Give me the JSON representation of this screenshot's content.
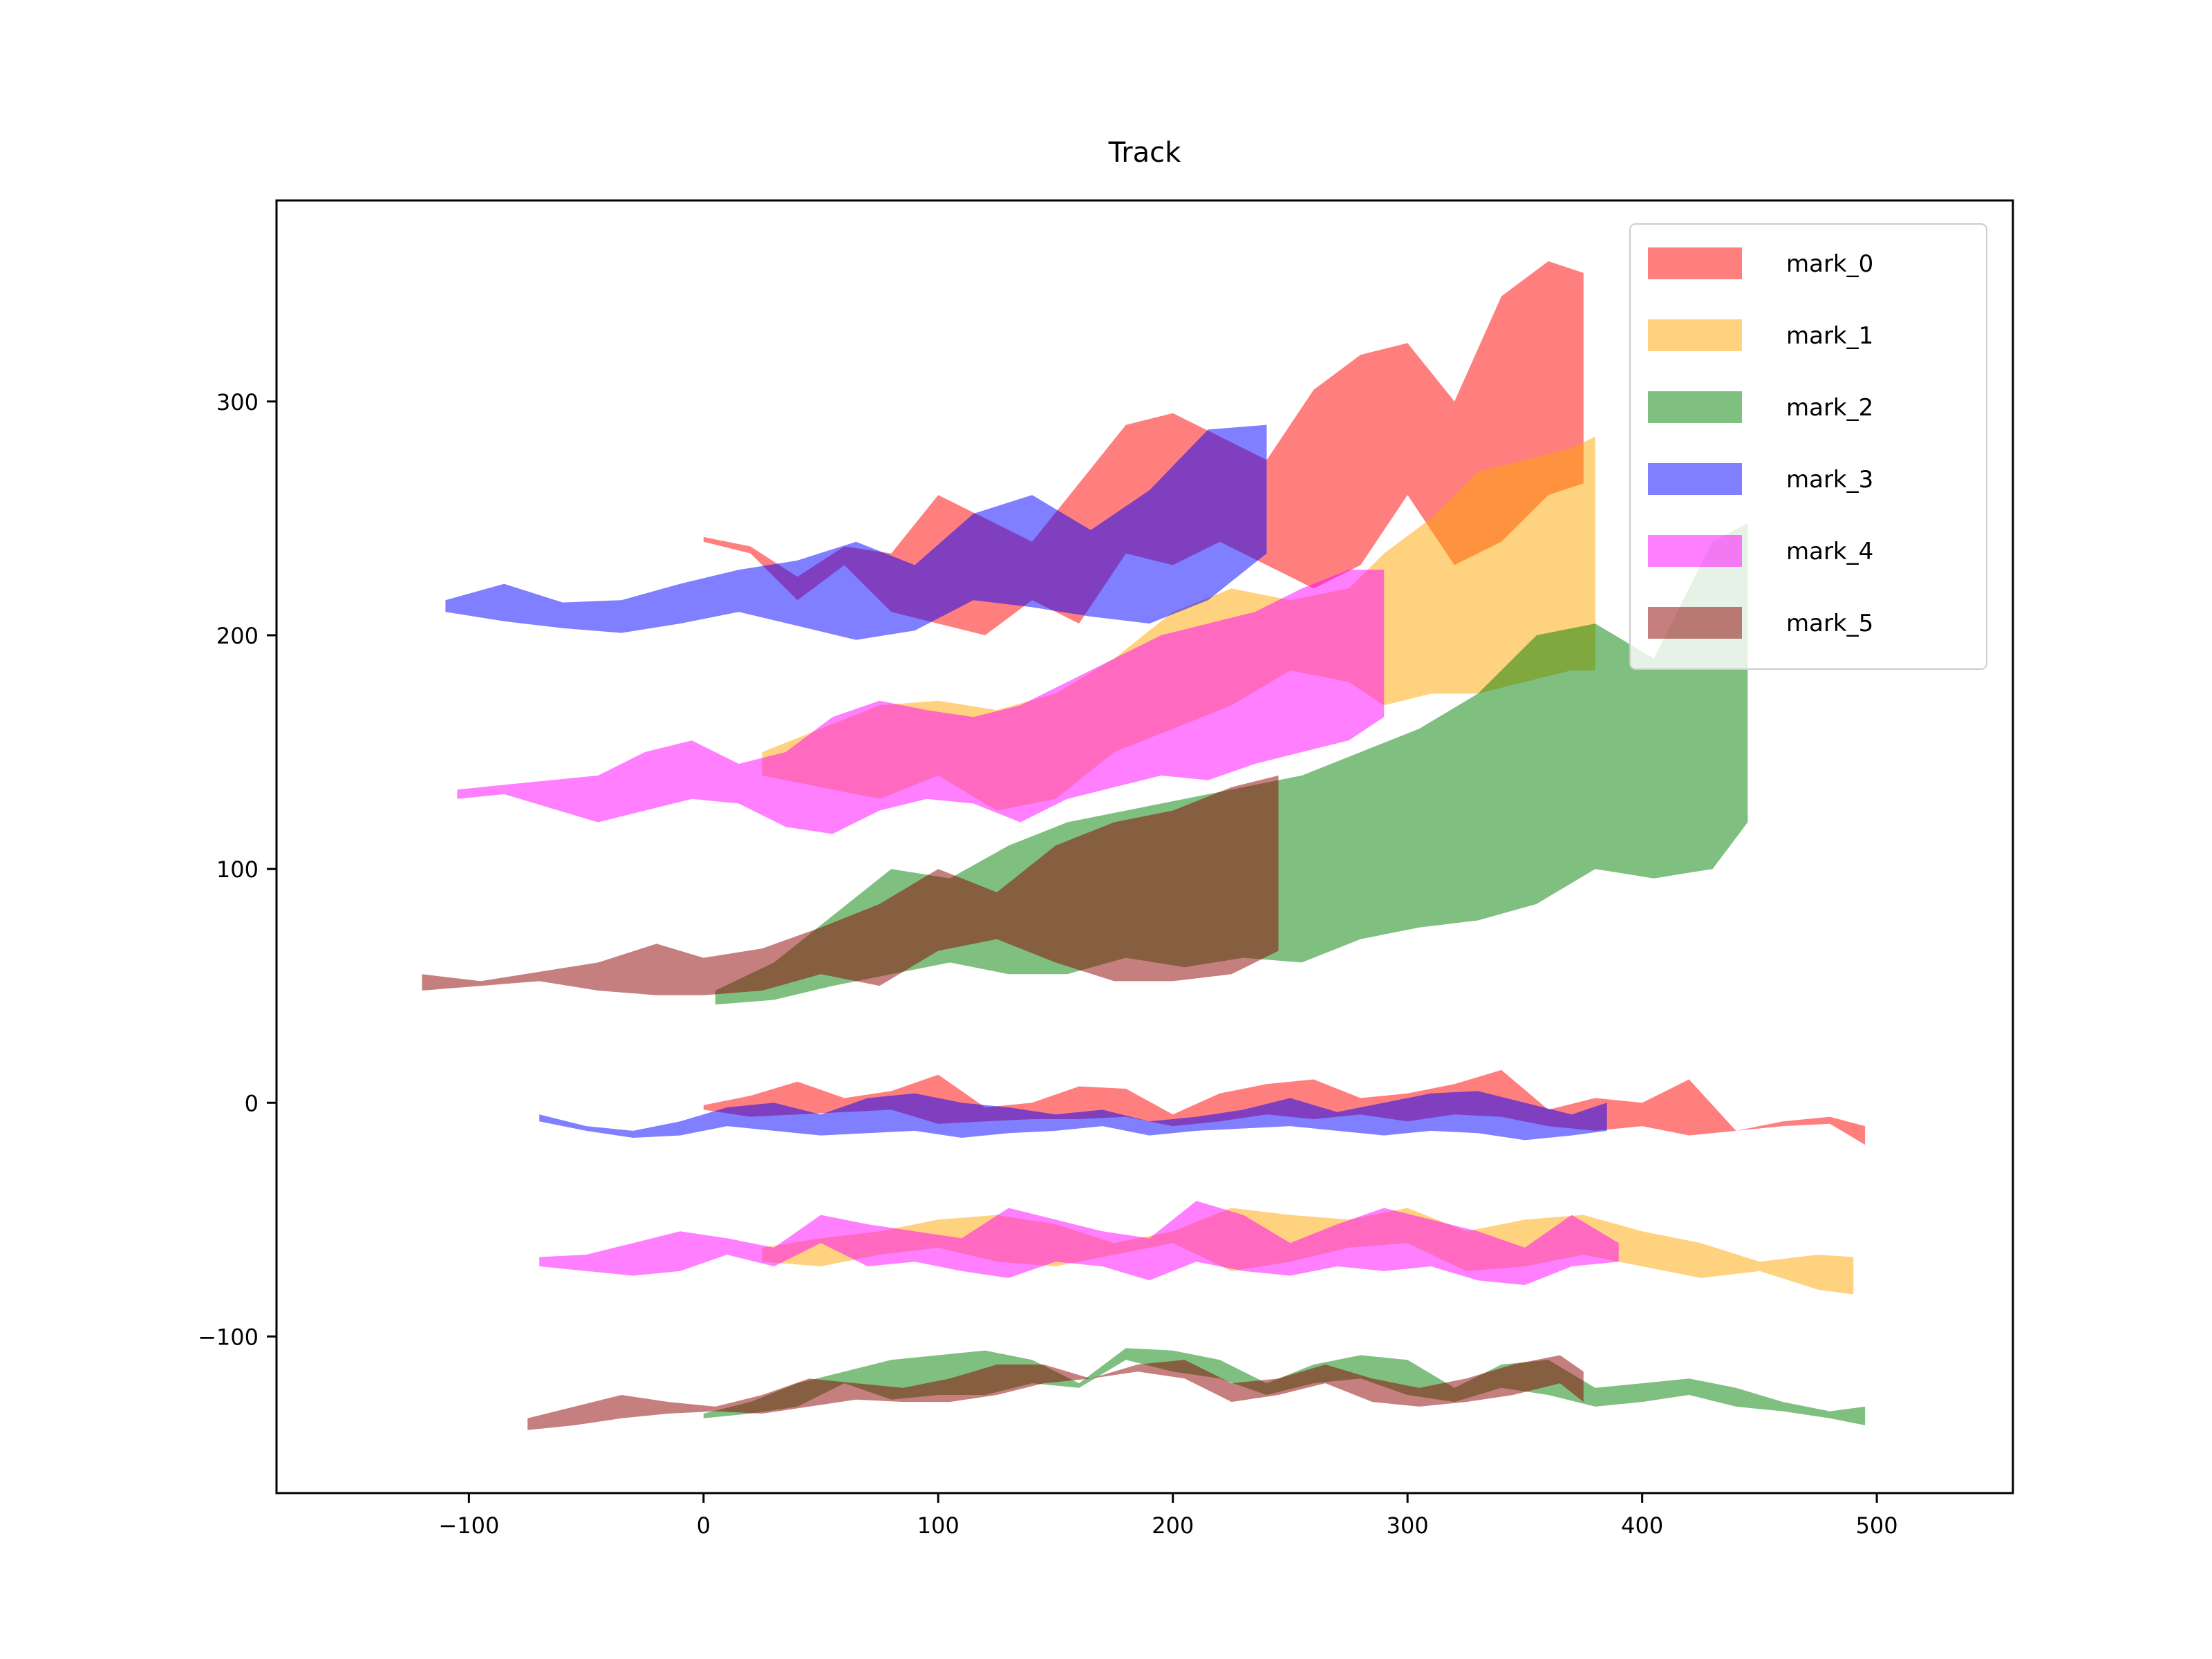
{
  "chart_data": {
    "type": "area",
    "title": "Track",
    "xlabel": "",
    "ylabel": "",
    "xlim": [
      -182,
      558
    ],
    "ylim": [
      -167,
      386
    ],
    "x_ticks": [
      -100,
      0,
      100,
      200,
      300,
      400,
      500
    ],
    "y_ticks": [
      -100,
      0,
      100,
      200,
      300
    ],
    "x_tick_labels": [
      "−100",
      "0",
      "100",
      "200",
      "300",
      "400",
      "500"
    ],
    "y_tick_labels": [
      "−100",
      "0",
      "100",
      "200",
      "300"
    ],
    "grid": false,
    "legend_position": "top-right",
    "series": [
      {
        "name": "mark_0",
        "color": "#ff0000",
        "opacity": 0.5,
        "bands": [
          {
            "x": [
              0,
              20,
              40,
              60,
              80,
              100,
              120,
              140,
              160,
              180,
              200,
              220,
              240,
              260,
              280,
              300,
              320,
              340,
              360,
              380,
              400,
              420,
              440,
              460,
              480,
              495
            ],
            "y_low": [
              -3,
              -6,
              -5,
              -4,
              -3,
              -9,
              -8,
              -7,
              -7,
              -6,
              -10,
              -8,
              -5,
              -7,
              -5,
              -8,
              -5,
              -6,
              -10,
              -12,
              -10,
              -14,
              -12,
              -10,
              -9,
              -18
            ],
            "y_high": [
              -1,
              3,
              9,
              2,
              5,
              12,
              -2,
              0,
              7,
              6,
              -5,
              4,
              8,
              10,
              2,
              4,
              8,
              14,
              -3,
              2,
              0,
              10,
              -12,
              -8,
              -6,
              -10
            ]
          },
          {
            "x": [
              0,
              20,
              40,
              60,
              80,
              100,
              120,
              140,
              160,
              180,
              200,
              220,
              240,
              260,
              280,
              300,
              320,
              340,
              360,
              375
            ],
            "y_low": [
              240,
              235,
              215,
              230,
              210,
              205,
              200,
              215,
              205,
              235,
              230,
              240,
              230,
              220,
              230,
              260,
              230,
              240,
              260,
              265
            ],
            "y_high": [
              242,
              238,
              225,
              238,
              235,
              260,
              250,
              240,
              265,
              290,
              295,
              285,
              275,
              305,
              320,
              325,
              300,
              345,
              360,
              355
            ]
          }
        ]
      },
      {
        "name": "mark_1",
        "color": "#ffa500",
        "opacity": 0.5,
        "bands": [
          {
            "x": [
              25,
              50,
              75,
              100,
              125,
              150,
              175,
              200,
              225,
              250,
              275,
              300,
              325,
              350,
              375,
              400,
              425,
              450,
              475,
              490
            ],
            "y_low": [
              -68,
              -70,
              -65,
              -62,
              -68,
              -70,
              -65,
              -60,
              -72,
              -68,
              -62,
              -60,
              -72,
              -70,
              -65,
              -70,
              -75,
              -72,
              -80,
              -82
            ],
            "y_high": [
              -62,
              -58,
              -55,
              -50,
              -48,
              -52,
              -60,
              -55,
              -45,
              -48,
              -50,
              -45,
              -55,
              -50,
              -48,
              -55,
              -60,
              -68,
              -65,
              -66
            ]
          },
          {
            "x": [
              25,
              50,
              75,
              100,
              125,
              150,
              175,
              200,
              225,
              250,
              275,
              290,
              310,
              330,
              350,
              370,
              380
            ],
            "y_low": [
              140,
              135,
              130,
              140,
              125,
              130,
              150,
              160,
              170,
              185,
              180,
              170,
              175,
              175,
              180,
              185,
              185
            ],
            "y_high": [
              150,
              160,
              170,
              172,
              168,
              175,
              190,
              210,
              220,
              215,
              220,
              235,
              250,
              270,
              275,
              280,
              285
            ]
          }
        ]
      },
      {
        "name": "mark_2",
        "color": "#008000",
        "opacity": 0.5,
        "bands": [
          {
            "x": [
              0,
              20,
              40,
              60,
              80,
              100,
              120,
              140,
              160,
              180,
              200,
              220,
              240,
              260,
              280,
              300,
              320,
              340,
              360,
              380,
              400,
              420,
              440,
              460,
              480,
              495
            ],
            "y_low": [
              -135,
              -133,
              -130,
              -120,
              -127,
              -125,
              -125,
              -120,
              -122,
              -110,
              -115,
              -118,
              -125,
              -120,
              -118,
              -125,
              -128,
              -122,
              -125,
              -130,
              -128,
              -125,
              -130,
              -132,
              -135,
              -138
            ],
            "y_high": [
              -133,
              -128,
              -120,
              -115,
              -110,
              -108,
              -106,
              -110,
              -120,
              -105,
              -106,
              -110,
              -120,
              -112,
              -108,
              -110,
              -122,
              -112,
              -110,
              -122,
              -120,
              -118,
              -122,
              -128,
              -132,
              -130
            ]
          },
          {
            "x": [
              5,
              30,
              55,
              80,
              105,
              130,
              155,
              180,
              205,
              230,
              255,
              280,
              305,
              330,
              355,
              380,
              405,
              430,
              445
            ],
            "y_low": [
              42,
              44,
              50,
              55,
              60,
              55,
              55,
              62,
              58,
              62,
              60,
              70,
              75,
              78,
              85,
              100,
              96,
              100,
              120
            ],
            "y_high": [
              48,
              60,
              80,
              100,
              96,
              110,
              120,
              125,
              130,
              135,
              140,
              150,
              160,
              175,
              200,
              205,
              190,
              240,
              248
            ]
          }
        ]
      },
      {
        "name": "mark_3",
        "color": "#0000ff",
        "opacity": 0.5,
        "bands": [
          {
            "x": [
              -70,
              -50,
              -30,
              -10,
              10,
              30,
              50,
              70,
              90,
              110,
              130,
              150,
              170,
              190,
              210,
              230,
              250,
              270,
              290,
              310,
              330,
              350,
              370,
              385
            ],
            "y_low": [
              -8,
              -12,
              -15,
              -14,
              -10,
              -12,
              -14,
              -13,
              -12,
              -15,
              -13,
              -12,
              -10,
              -14,
              -12,
              -11,
              -10,
              -12,
              -14,
              -12,
              -13,
              -16,
              -14,
              -12
            ],
            "y_high": [
              -5,
              -10,
              -12,
              -8,
              -2,
              0,
              -5,
              2,
              4,
              0,
              -2,
              -5,
              -3,
              -8,
              -6,
              -3,
              2,
              -4,
              0,
              4,
              5,
              0,
              -5,
              0
            ]
          },
          {
            "x": [
              -110,
              -85,
              -60,
              -35,
              -10,
              15,
              40,
              65,
              90,
              115,
              140,
              165,
              190,
              215,
              240
            ],
            "y_low": [
              210,
              206,
              203,
              201,
              205,
              210,
              204,
              198,
              202,
              215,
              212,
              208,
              205,
              215,
              235
            ],
            "y_high": [
              215,
              222,
              214,
              215,
              222,
              228,
              232,
              240,
              230,
              252,
              260,
              245,
              262,
              288,
              290
            ]
          }
        ]
      },
      {
        "name": "mark_4",
        "color": "#ff00ff",
        "opacity": 0.5,
        "bands": [
          {
            "x": [
              -70,
              -50,
              -30,
              -10,
              10,
              30,
              50,
              70,
              90,
              110,
              130,
              150,
              170,
              190,
              210,
              230,
              250,
              270,
              290,
              310,
              330,
              350,
              370,
              390
            ],
            "y_low": [
              -70,
              -72,
              -74,
              -72,
              -65,
              -70,
              -60,
              -70,
              -68,
              -72,
              -75,
              -68,
              -70,
              -76,
              -68,
              -72,
              -74,
              -70,
              -72,
              -70,
              -76,
              -78,
              -70,
              -68
            ],
            "y_high": [
              -66,
              -65,
              -60,
              -55,
              -58,
              -62,
              -48,
              -52,
              -55,
              -58,
              -45,
              -50,
              -55,
              -58,
              -42,
              -48,
              -60,
              -52,
              -45,
              -50,
              -55,
              -62,
              -48,
              -60
            ]
          },
          {
            "x": [
              -105,
              -85,
              -65,
              -45,
              -25,
              -5,
              15,
              35,
              55,
              75,
              95,
              115,
              135,
              155,
              175,
              195,
              215,
              235,
              255,
              275,
              290
            ],
            "y_low": [
              130,
              132,
              126,
              120,
              125,
              130,
              128,
              118,
              115,
              125,
              130,
              128,
              120,
              130,
              135,
              140,
              138,
              145,
              150,
              155,
              165
            ],
            "y_high": [
              134,
              136,
              138,
              140,
              150,
              155,
              145,
              150,
              165,
              172,
              168,
              165,
              170,
              180,
              190,
              200,
              205,
              210,
              220,
              228,
              228
            ]
          }
        ]
      },
      {
        "name": "mark_5",
        "color": "#8b0000",
        "opacity": 0.5,
        "bands": [
          {
            "x": [
              -75,
              -55,
              -35,
              -15,
              5,
              25,
              45,
              65,
              85,
              105,
              125,
              145,
              165,
              185,
              205,
              225,
              245,
              265,
              285,
              305,
              325,
              345,
              365,
              375
            ],
            "y_low": [
              -140,
              -138,
              -135,
              -133,
              -132,
              -133,
              -130,
              -127,
              -128,
              -128,
              -125,
              -120,
              -118,
              -115,
              -118,
              -128,
              -125,
              -120,
              -128,
              -130,
              -128,
              -125,
              -120,
              -128
            ],
            "y_high": [
              -135,
              -130,
              -125,
              -128,
              -130,
              -125,
              -118,
              -120,
              -122,
              -118,
              -112,
              -112,
              -118,
              -112,
              -110,
              -120,
              -118,
              -112,
              -118,
              -122,
              -118,
              -112,
              -108,
              -115
            ]
          },
          {
            "x": [
              -120,
              -95,
              -70,
              -45,
              -20,
              0,
              25,
              50,
              75,
              100,
              125,
              150,
              175,
              200,
              225,
              245
            ],
            "y_low": [
              48,
              50,
              52,
              48,
              46,
              46,
              48,
              55,
              50,
              65,
              70,
              60,
              52,
              52,
              55,
              65
            ],
            "y_high": [
              55,
              52,
              56,
              60,
              68,
              62,
              66,
              75,
              85,
              100,
              90,
              110,
              120,
              125,
              135,
              140
            ]
          }
        ]
      }
    ]
  }
}
